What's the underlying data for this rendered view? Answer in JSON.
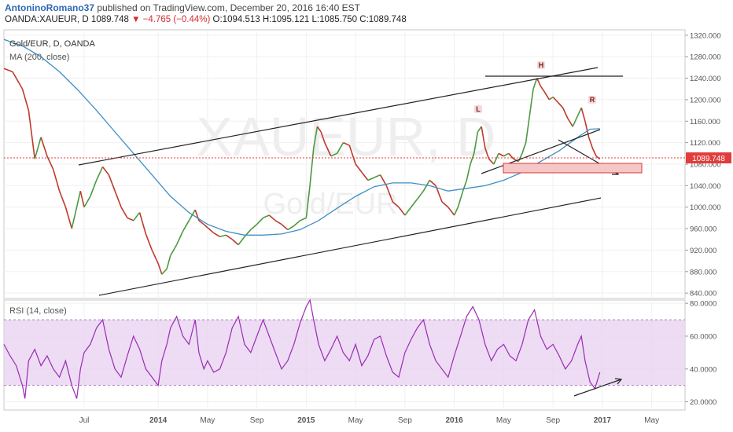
{
  "header": {
    "author": "AntoninoRomano37",
    "published": "published on TradingView.com, December 20, 2016 16:40 EST",
    "symbol": "OANDA:XAUEUR, D",
    "last": "1089.748",
    "change": "▼ −4.765 (−0.44%)",
    "ohlc": "O:1094.513 H:1095.121 L:1085.750 C:1089.748"
  },
  "price_pane": {
    "legend_title": "Gold/EUR, D, OANDA",
    "ma_legend": "MA (200, close)",
    "watermark_symbol": "XAUEUR, D",
    "watermark_name": "Gold/EUR",
    "last_price_label": "1089.748",
    "pattern_labels": [
      "L",
      "H",
      "R"
    ]
  },
  "rsi_pane": {
    "legend": "RSI (14, close)"
  },
  "colors": {
    "up_candle": "#4a9a3e",
    "down_candle": "#c0392b",
    "ma_line": "#3d8fc4",
    "rsi_line": "#9a2bb5",
    "rsi_band": "#e9d3f0",
    "last_price": "#e23c3c",
    "support_zone": "#f7c6c6",
    "trendlines": "#222222"
  },
  "chart_data": [
    {
      "type": "line",
      "title": "Gold/EUR, D, OANDA",
      "y_ticks": [
        "1320.000",
        "1280.000",
        "1240.000",
        "1200.000",
        "1160.000",
        "1120.000",
        "1080.000",
        "1040.000",
        "1000.000",
        "960.000",
        "920.000",
        "880.000",
        "840.000"
      ],
      "ylim": [
        830,
        1330
      ],
      "x_ticks": [
        "Jul",
        "2014",
        "May",
        "Sep",
        "2015",
        "May",
        "Sep",
        "2016",
        "May",
        "Sep",
        "2017",
        "May"
      ],
      "x_months": [
        0,
        6,
        10,
        14,
        18,
        22,
        26,
        30,
        34,
        38,
        42,
        46
      ],
      "xlim_months": [
        -6.5,
        48.7
      ],
      "series": [
        {
          "kind": "price",
          "points": [
            [
              -6.5,
              1258
            ],
            [
              -5.8,
              1252
            ],
            [
              -5,
              1220
            ],
            [
              -4.5,
              1180
            ],
            [
              -4,
              1090
            ],
            [
              -3.5,
              1130
            ],
            [
              -3,
              1095
            ],
            [
              -2.5,
              1070
            ],
            [
              -2,
              1030
            ],
            [
              -1.5,
              1000
            ],
            [
              -1,
              960
            ],
            [
              -0.6,
              1000
            ],
            [
              -0.3,
              1030
            ],
            [
              0,
              1000
            ],
            [
              0.5,
              1020
            ],
            [
              1,
              1050
            ],
            [
              1.5,
              1075
            ],
            [
              2,
              1060
            ],
            [
              2.5,
              1030
            ],
            [
              3,
              1000
            ],
            [
              3.5,
              980
            ],
            [
              4,
              975
            ],
            [
              4.5,
              990
            ],
            [
              5,
              950
            ],
            [
              5.5,
              920
            ],
            [
              6,
              895
            ],
            [
              6.3,
              875
            ],
            [
              6.7,
              885
            ],
            [
              7,
              910
            ],
            [
              7.5,
              930
            ],
            [
              8,
              955
            ],
            [
              8.5,
              975
            ],
            [
              9,
              995
            ],
            [
              9.3,
              975
            ],
            [
              9.7,
              968
            ],
            [
              10,
              962
            ],
            [
              10.5,
              952
            ],
            [
              11,
              945
            ],
            [
              11.5,
              948
            ],
            [
              12,
              940
            ],
            [
              12.5,
              930
            ],
            [
              13,
              945
            ],
            [
              13.5,
              958
            ],
            [
              14,
              968
            ],
            [
              14.5,
              980
            ],
            [
              15,
              985
            ],
            [
              15.5,
              975
            ],
            [
              16,
              968
            ],
            [
              16.5,
              958
            ],
            [
              17,
              965
            ],
            [
              17.5,
              975
            ],
            [
              18,
              980
            ],
            [
              18.3,
              1040
            ],
            [
              18.6,
              1110
            ],
            [
              18.9,
              1150
            ],
            [
              19.2,
              1140
            ],
            [
              19.5,
              1120
            ],
            [
              20,
              1095
            ],
            [
              20.5,
              1100
            ],
            [
              21,
              1120
            ],
            [
              21.5,
              1115
            ],
            [
              22,
              1080
            ],
            [
              22.5,
              1065
            ],
            [
              23,
              1050
            ],
            [
              23.5,
              1055
            ],
            [
              24,
              1060
            ],
            [
              24.5,
              1040
            ],
            [
              25,
              1010
            ],
            [
              25.5,
              1000
            ],
            [
              26,
              985
            ],
            [
              26.5,
              1000
            ],
            [
              27,
              1015
            ],
            [
              27.5,
              1030
            ],
            [
              28,
              1050
            ],
            [
              28.5,
              1040
            ],
            [
              29,
              1010
            ],
            [
              29.5,
              1000
            ],
            [
              30,
              985
            ],
            [
              30.3,
              1000
            ],
            [
              30.7,
              1030
            ],
            [
              31,
              1050
            ],
            [
              31.3,
              1080
            ],
            [
              31.6,
              1100
            ],
            [
              31.9,
              1140
            ],
            [
              32.2,
              1150
            ],
            [
              32.5,
              1110
            ],
            [
              32.8,
              1090
            ],
            [
              33.2,
              1080
            ],
            [
              33.6,
              1100
            ],
            [
              34,
              1095
            ],
            [
              34.4,
              1100
            ],
            [
              34.8,
              1090
            ],
            [
              35.2,
              1085
            ],
            [
              35.5,
              1100
            ],
            [
              35.8,
              1120
            ],
            [
              36.1,
              1170
            ],
            [
              36.4,
              1220
            ],
            [
              36.7,
              1240
            ],
            [
              37,
              1225
            ],
            [
              37.3,
              1215
            ],
            [
              37.7,
              1200
            ],
            [
              38,
              1205
            ],
            [
              38.4,
              1195
            ],
            [
              38.8,
              1185
            ],
            [
              39.2,
              1165
            ],
            [
              39.6,
              1150
            ],
            [
              40,
              1170
            ],
            [
              40.3,
              1185
            ],
            [
              40.6,
              1160
            ],
            [
              40.9,
              1130
            ],
            [
              41.2,
              1110
            ],
            [
              41.5,
              1095
            ],
            [
              41.8,
              1089.748
            ]
          ]
        },
        {
          "kind": "ma200",
          "name": "MA (200, close)",
          "points": [
            [
              -6.5,
              1312
            ],
            [
              -5,
              1300
            ],
            [
              -3.5,
              1280
            ],
            [
              -2,
              1252
            ],
            [
              -0.5,
              1218
            ],
            [
              1,
              1180
            ],
            [
              2.5,
              1140
            ],
            [
              4,
              1100
            ],
            [
              5.5,
              1060
            ],
            [
              7,
              1020
            ],
            [
              8.5,
              990
            ],
            [
              10,
              968
            ],
            [
              11.5,
              955
            ],
            [
              13,
              948
            ],
            [
              14.5,
              948
            ],
            [
              16,
              950
            ],
            [
              17.5,
              958
            ],
            [
              19,
              975
            ],
            [
              20.5,
              998
            ],
            [
              22,
              1020
            ],
            [
              23.5,
              1038
            ],
            [
              25,
              1045
            ],
            [
              26.5,
              1045
            ],
            [
              28,
              1040
            ],
            [
              29.5,
              1030
            ],
            [
              31,
              1035
            ],
            [
              32.5,
              1040
            ],
            [
              34,
              1050
            ],
            [
              35.5,
              1065
            ],
            [
              37,
              1085
            ],
            [
              38.5,
              1105
            ],
            [
              40,
              1130
            ],
            [
              41,
              1145
            ],
            [
              41.8,
              1146
            ]
          ]
        }
      ]
    },
    {
      "type": "line",
      "title": "RSI (14, close)",
      "y_ticks": [
        "80.0000",
        "60.0000",
        "40.0000",
        "20.0000"
      ],
      "ylim": [
        15,
        82
      ],
      "band": [
        30,
        70
      ],
      "series": [
        {
          "name": "RSI (14, close)",
          "points": [
            [
              -6.5,
              55
            ],
            [
              -6,
              48
            ],
            [
              -5.5,
              42
            ],
            [
              -5,
              30
            ],
            [
              -4.8,
              22
            ],
            [
              -4.5,
              45
            ],
            [
              -4,
              52
            ],
            [
              -3.5,
              42
            ],
            [
              -3,
              48
            ],
            [
              -2.5,
              40
            ],
            [
              -2,
              35
            ],
            [
              -1.5,
              45
            ],
            [
              -1,
              30
            ],
            [
              -0.6,
              22
            ],
            [
              -0.3,
              40
            ],
            [
              0,
              50
            ],
            [
              0.5,
              55
            ],
            [
              1,
              65
            ],
            [
              1.5,
              70
            ],
            [
              2,
              52
            ],
            [
              2.5,
              40
            ],
            [
              3,
              35
            ],
            [
              3.5,
              48
            ],
            [
              4,
              60
            ],
            [
              4.5,
              52
            ],
            [
              5,
              40
            ],
            [
              5.5,
              35
            ],
            [
              6,
              30
            ],
            [
              6.3,
              45
            ],
            [
              6.7,
              55
            ],
            [
              7,
              65
            ],
            [
              7.5,
              72
            ],
            [
              8,
              60
            ],
            [
              8.5,
              55
            ],
            [
              9,
              70
            ],
            [
              9.3,
              50
            ],
            [
              9.7,
              40
            ],
            [
              10,
              45
            ],
            [
              10.5,
              38
            ],
            [
              11,
              40
            ],
            [
              11.5,
              50
            ],
            [
              12,
              65
            ],
            [
              12.5,
              72
            ],
            [
              13,
              55
            ],
            [
              13.5,
              50
            ],
            [
              14,
              60
            ],
            [
              14.5,
              70
            ],
            [
              15,
              60
            ],
            [
              15.5,
              50
            ],
            [
              16,
              40
            ],
            [
              16.5,
              45
            ],
            [
              17,
              55
            ],
            [
              17.5,
              68
            ],
            [
              18,
              78
            ],
            [
              18.3,
              82
            ],
            [
              18.6,
              70
            ],
            [
              19,
              55
            ],
            [
              19.5,
              45
            ],
            [
              20,
              52
            ],
            [
              20.5,
              60
            ],
            [
              21,
              50
            ],
            [
              21.5,
              45
            ],
            [
              22,
              55
            ],
            [
              22.5,
              42
            ],
            [
              23,
              48
            ],
            [
              23.5,
              58
            ],
            [
              24,
              60
            ],
            [
              24.5,
              48
            ],
            [
              25,
              38
            ],
            [
              25.5,
              35
            ],
            [
              26,
              50
            ],
            [
              26.5,
              58
            ],
            [
              27,
              65
            ],
            [
              27.5,
              70
            ],
            [
              28,
              55
            ],
            [
              28.5,
              45
            ],
            [
              29,
              40
            ],
            [
              29.5,
              35
            ],
            [
              30,
              48
            ],
            [
              30.5,
              60
            ],
            [
              31,
              72
            ],
            [
              31.5,
              78
            ],
            [
              32,
              70
            ],
            [
              32.5,
              55
            ],
            [
              33,
              45
            ],
            [
              33.5,
              52
            ],
            [
              34,
              55
            ],
            [
              34.5,
              48
            ],
            [
              35,
              45
            ],
            [
              35.5,
              55
            ],
            [
              36,
              70
            ],
            [
              36.5,
              76
            ],
            [
              37,
              60
            ],
            [
              37.5,
              52
            ],
            [
              38,
              55
            ],
            [
              38.5,
              48
            ],
            [
              39,
              40
            ],
            [
              39.5,
              45
            ],
            [
              40,
              55
            ],
            [
              40.3,
              60
            ],
            [
              40.6,
              45
            ],
            [
              41,
              32
            ],
            [
              41.4,
              28
            ],
            [
              41.8,
              38
            ]
          ]
        }
      ]
    }
  ]
}
